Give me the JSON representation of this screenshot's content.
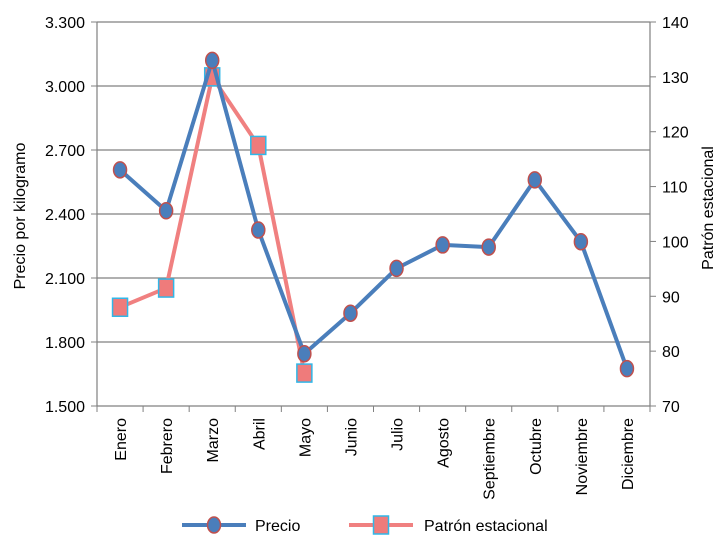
{
  "chart_data": {
    "type": "line",
    "categories": [
      "Enero",
      "Febrero",
      "Marzo",
      "Abril",
      "Mayo",
      "Junio",
      "Julio",
      "Agosto",
      "Septiembre",
      "Octubre",
      "Noviembre",
      "Diciembre"
    ],
    "ylabel_left": "Precio por kilogramo",
    "ylabel_right": "Patrón estacional",
    "y_left": {
      "min": 1500,
      "max": 3300,
      "ticks": [
        "1.500",
        "1.800",
        "2.100",
        "2.400",
        "2.700",
        "3.000",
        "3.300"
      ],
      "tick_values": [
        1500,
        1800,
        2100,
        2400,
        2700,
        3000,
        3300
      ]
    },
    "y_right": {
      "min": 70,
      "max": 140,
      "ticks": [
        "70",
        "80",
        "90",
        "100",
        "110",
        "120",
        "130",
        "140"
      ],
      "tick_values": [
        70,
        80,
        90,
        100,
        110,
        120,
        130,
        140
      ]
    },
    "grid": true,
    "legend_position": "bottom",
    "series": [
      {
        "name": "Precio",
        "axis": "left",
        "color": "#4a7ebb",
        "marker": "circle",
        "marker_fill": "#4a7ebb",
        "marker_stroke": "#c0504d",
        "values": [
          2607,
          2415,
          3120,
          2325,
          1745,
          1935,
          2145,
          2255,
          2245,
          2560,
          2270,
          1675
        ]
      },
      {
        "name": "Patrón estacional",
        "axis": "right",
        "color": "#f08080",
        "marker": "square",
        "marker_fill": "#ef7b7b",
        "marker_stroke": "#31b7e8",
        "values": [
          88,
          91.5,
          130,
          117.5,
          76,
          null,
          null,
          null,
          null,
          null,
          null,
          null
        ]
      }
    ]
  }
}
